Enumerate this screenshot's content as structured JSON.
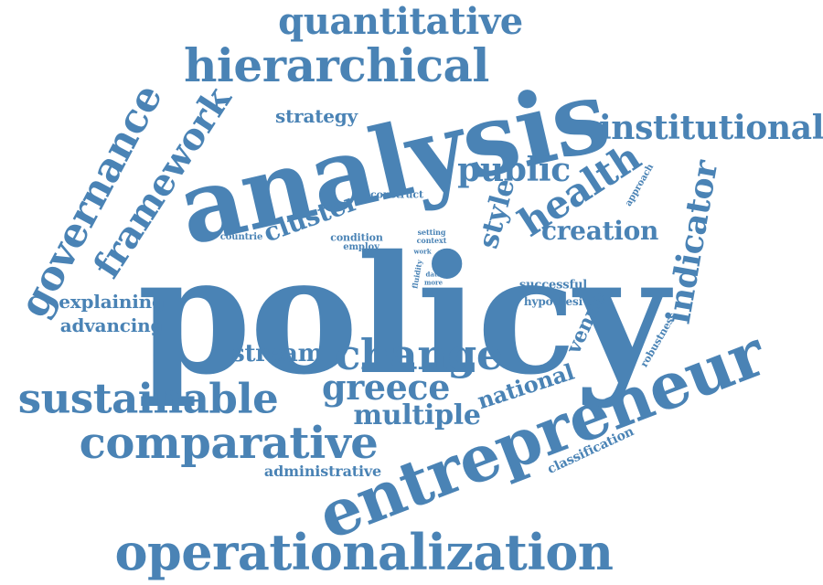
{
  "colors": {
    "word": "#4a83b5",
    "background": "#ffffff"
  },
  "words": {
    "policy": "policy",
    "analysis": "analysis",
    "entrepreneur": "entrepreneur",
    "operationalization": "operationalization",
    "comparative": "comparative",
    "sustainable": "sustainable",
    "change": "change",
    "hierarchical": "hierarchical",
    "quantitative": "quantitative",
    "governance": "governance",
    "framework": "framework",
    "institutional": "institutional",
    "health": "health",
    "public": "public",
    "indicator": "indicator",
    "greece": "greece",
    "multiple": "multiple",
    "cluster": "cluster",
    "creation": "creation",
    "style": "style",
    "stream": "stream",
    "national": "national",
    "strategy": "strategy",
    "explaining": "explaining",
    "advancing": "advancing",
    "venue": "venue",
    "administrative": "administrative",
    "classification": "classification",
    "successful": "successful",
    "hypothesi": "hypothesi",
    "robustness": "robustness",
    "approach": "approach",
    "construct": "construct",
    "condition": "condition",
    "employ": "employ",
    "countrie": "countrie",
    "setting": "setting",
    "context": "context",
    "work": "work",
    "fluidity": "fluidity",
    "data": "data",
    "more": "more"
  }
}
